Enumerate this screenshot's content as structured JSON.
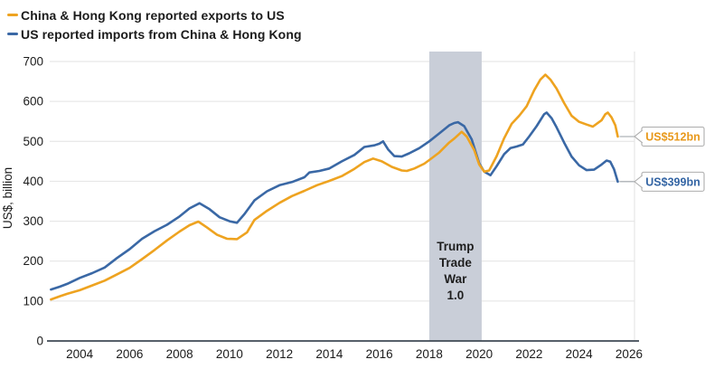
{
  "chart_data": {
    "type": "line",
    "title": "",
    "xlabel": "",
    "ylabel": "US$, billion",
    "xlim": [
      2002.8,
      2026.4
    ],
    "ylim": [
      0,
      700
    ],
    "x_ticks": [
      2004,
      2006,
      2008,
      2010,
      2012,
      2014,
      2016,
      2018,
      2020,
      2022,
      2024,
      2026
    ],
    "y_ticks": [
      0,
      100,
      200,
      300,
      400,
      500,
      600,
      700
    ],
    "grid": "horizontal-light",
    "legend_position": "top-left",
    "series": [
      {
        "name": "China & Hong Kong reported exports to US",
        "color": "#EEA320",
        "points": [
          [
            2002.85,
            104
          ],
          [
            2003.2,
            112
          ],
          [
            2003.5,
            118
          ],
          [
            2004,
            127
          ],
          [
            2004.5,
            139
          ],
          [
            2005,
            151
          ],
          [
            2005.5,
            167
          ],
          [
            2006,
            183
          ],
          [
            2006.5,
            205
          ],
          [
            2007,
            228
          ],
          [
            2007.5,
            252
          ],
          [
            2008,
            274
          ],
          [
            2008.4,
            290
          ],
          [
            2008.75,
            299
          ],
          [
            2009.1,
            284
          ],
          [
            2009.5,
            266
          ],
          [
            2009.9,
            256
          ],
          [
            2010.3,
            255
          ],
          [
            2010.7,
            272
          ],
          [
            2011,
            303
          ],
          [
            2011.5,
            326
          ],
          [
            2012,
            346
          ],
          [
            2012.5,
            363
          ],
          [
            2013,
            376
          ],
          [
            2013.5,
            390
          ],
          [
            2014,
            401
          ],
          [
            2014.5,
            413
          ],
          [
            2015,
            431
          ],
          [
            2015.4,
            448
          ],
          [
            2015.75,
            457
          ],
          [
            2016.1,
            450
          ],
          [
            2016.5,
            436
          ],
          [
            2016.9,
            427
          ],
          [
            2017.1,
            426
          ],
          [
            2017.4,
            432
          ],
          [
            2017.8,
            444
          ],
          [
            2018,
            453
          ],
          [
            2018.4,
            472
          ],
          [
            2018.8,
            497
          ],
          [
            2019,
            507
          ],
          [
            2019.3,
            524
          ],
          [
            2019.5,
            512
          ],
          [
            2019.8,
            478
          ],
          [
            2020,
            442
          ],
          [
            2020.2,
            424
          ],
          [
            2020.4,
            427
          ],
          [
            2020.7,
            463
          ],
          [
            2021,
            508
          ],
          [
            2021.3,
            544
          ],
          [
            2021.6,
            564
          ],
          [
            2021.9,
            588
          ],
          [
            2022.2,
            628
          ],
          [
            2022.45,
            655
          ],
          [
            2022.65,
            667
          ],
          [
            2022.85,
            655
          ],
          [
            2023.1,
            632
          ],
          [
            2023.4,
            596
          ],
          [
            2023.7,
            564
          ],
          [
            2024,
            549
          ],
          [
            2024.3,
            542
          ],
          [
            2024.55,
            537
          ],
          [
            2024.9,
            553
          ],
          [
            2025.05,
            568
          ],
          [
            2025.15,
            572
          ],
          [
            2025.3,
            560
          ],
          [
            2025.45,
            540
          ],
          [
            2025.55,
            512
          ]
        ]
      },
      {
        "name": "US reported imports from China & Hong Kong",
        "color": "#3A68A5",
        "points": [
          [
            2002.85,
            129
          ],
          [
            2003.2,
            136
          ],
          [
            2003.5,
            143
          ],
          [
            2004,
            158
          ],
          [
            2004.5,
            170
          ],
          [
            2005,
            184
          ],
          [
            2005.5,
            208
          ],
          [
            2006,
            230
          ],
          [
            2006.5,
            256
          ],
          [
            2007,
            275
          ],
          [
            2007.5,
            291
          ],
          [
            2008,
            312
          ],
          [
            2008.4,
            332
          ],
          [
            2008.8,
            345
          ],
          [
            2009.2,
            330
          ],
          [
            2009.6,
            310
          ],
          [
            2010,
            300
          ],
          [
            2010.3,
            296
          ],
          [
            2010.6,
            318
          ],
          [
            2011,
            352
          ],
          [
            2011.5,
            375
          ],
          [
            2012,
            390
          ],
          [
            2012.5,
            398
          ],
          [
            2013,
            410
          ],
          [
            2013.2,
            422
          ],
          [
            2013.6,
            426
          ],
          [
            2014,
            432
          ],
          [
            2014.5,
            450
          ],
          [
            2015,
            466
          ],
          [
            2015.4,
            486
          ],
          [
            2015.8,
            490
          ],
          [
            2016,
            494
          ],
          [
            2016.15,
            500
          ],
          [
            2016.35,
            480
          ],
          [
            2016.6,
            463
          ],
          [
            2016.9,
            462
          ],
          [
            2017.2,
            470
          ],
          [
            2017.6,
            483
          ],
          [
            2018,
            500
          ],
          [
            2018.4,
            520
          ],
          [
            2018.8,
            540
          ],
          [
            2019,
            546
          ],
          [
            2019.15,
            548
          ],
          [
            2019.4,
            538
          ],
          [
            2019.7,
            505
          ],
          [
            2020,
            445
          ],
          [
            2020.2,
            424
          ],
          [
            2020.45,
            415
          ],
          [
            2020.7,
            438
          ],
          [
            2021,
            468
          ],
          [
            2021.25,
            483
          ],
          [
            2021.5,
            487
          ],
          [
            2021.75,
            492
          ],
          [
            2022,
            512
          ],
          [
            2022.3,
            538
          ],
          [
            2022.6,
            568
          ],
          [
            2022.7,
            572
          ],
          [
            2022.9,
            558
          ],
          [
            2023.1,
            535
          ],
          [
            2023.4,
            497
          ],
          [
            2023.7,
            462
          ],
          [
            2024,
            440
          ],
          [
            2024.3,
            428
          ],
          [
            2024.6,
            429
          ],
          [
            2024.9,
            442
          ],
          [
            2025.1,
            452
          ],
          [
            2025.25,
            449
          ],
          [
            2025.4,
            430
          ],
          [
            2025.55,
            399
          ]
        ]
      }
    ],
    "band_annotation": {
      "x_from": 2018.0,
      "x_to": 2020.1,
      "label_lines": [
        "Trump",
        "Trade",
        "War",
        "1.0"
      ],
      "fill": "#C9CED8",
      "label_color": "#1e1e1e"
    },
    "end_labels": [
      {
        "text": "US$512bn",
        "value": 512,
        "series_index": 0,
        "color": "#E8991C"
      },
      {
        "text": "US$399bn",
        "value": 399,
        "series_index": 1,
        "color": "#3465A4"
      }
    ]
  },
  "colors": {
    "axis_line": "#3F4A54",
    "gridline": "#E2E2E2",
    "right_spine": "#E2E2E2",
    "tick_text": "#1b1b1b",
    "callout_border": "#ADADAD",
    "callout_fill": "#FFFFFF",
    "connector": "#9AA0A6"
  }
}
